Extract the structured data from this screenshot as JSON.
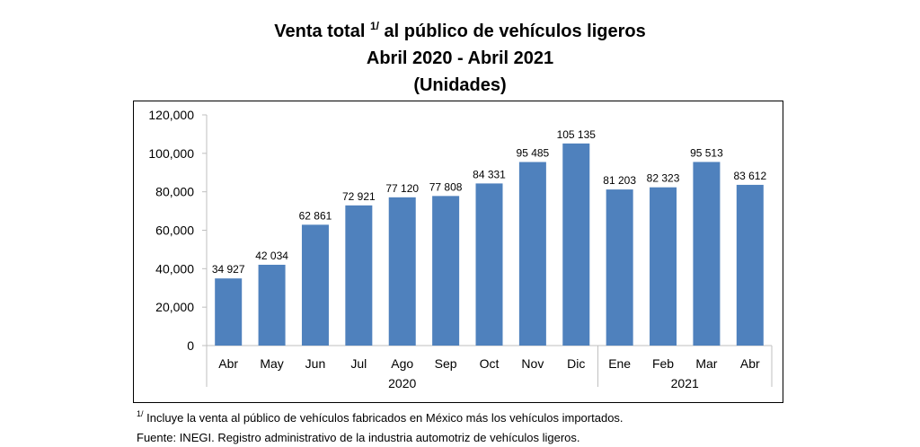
{
  "title": {
    "line1_main": "Venta total",
    "line1_sup": "1/",
    "line1_rest": "al público de vehículos ligeros",
    "line2": "Abril 2020 - Abril 2021",
    "line3": "(Unidades)"
  },
  "chart_data": {
    "type": "bar",
    "categories": [
      "Abr",
      "May",
      "Jun",
      "Jul",
      "Ago",
      "Sep",
      "Oct",
      "Nov",
      "Dic",
      "Ene",
      "Feb",
      "Mar",
      "Abr"
    ],
    "values": [
      34927,
      42034,
      62861,
      72921,
      77120,
      77808,
      84331,
      95485,
      105135,
      81203,
      82323,
      95513,
      83612
    ],
    "data_labels": [
      "34 927",
      "42 034",
      "62 861",
      "72 921",
      "77 120",
      "77 808",
      "84 331",
      "95 485",
      "105 135",
      "81 203",
      "82 323",
      "95 513",
      "83 612"
    ],
    "yticks": [
      0,
      20000,
      40000,
      60000,
      80000,
      100000,
      120000
    ],
    "ytick_labels": [
      "0",
      "20,000",
      "40,000",
      "60,000",
      "80,000",
      "100,000",
      "120,000"
    ],
    "ylim": [
      0,
      120000
    ],
    "year_groups": [
      {
        "label": "2020",
        "start": 0,
        "end": 8
      },
      {
        "label": "2021",
        "start": 9,
        "end": 12
      }
    ],
    "bar_color": "#4f81bd",
    "grid": false,
    "legend": "none"
  },
  "notes": {
    "note1_sup": "1/",
    "note1": "Incluye la venta al público de vehículos fabricados en México más los vehículos importados.",
    "note2": "Fuente: INEGI. Registro administrativo de la industria automotriz de vehículos ligeros."
  }
}
